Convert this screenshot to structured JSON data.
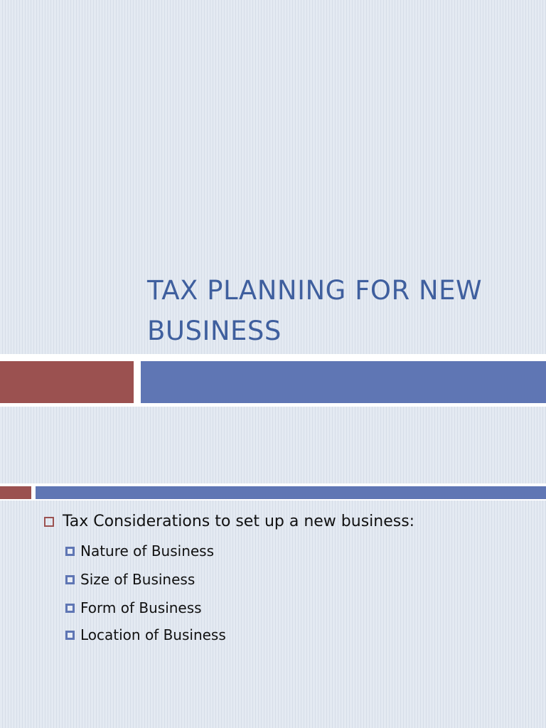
{
  "slide1": {
    "title": "TAX PLANNING FOR NEW BUSINESS"
  },
  "slide2": {
    "bullet": "Tax Considerations to set up a new business:",
    "subbullets": [
      "Nature of Business",
      "Size of Business",
      "Form of Business",
      "Location of Business"
    ]
  },
  "colors": {
    "accent_red": "#9b5150",
    "accent_blue": "#5f76b4",
    "title": "#3f5f9e"
  }
}
